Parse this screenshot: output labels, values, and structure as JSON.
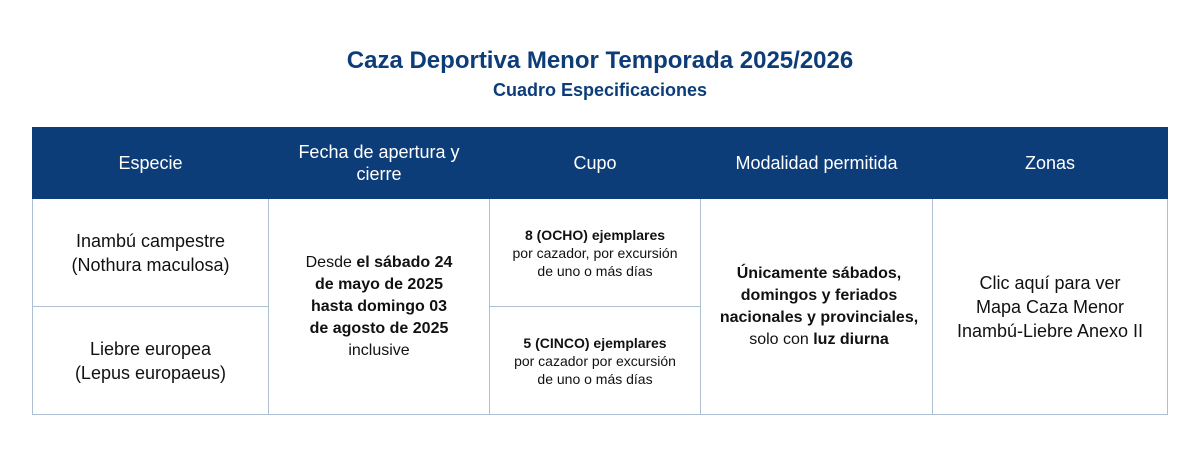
{
  "header": {
    "title": "Caza Deportiva Menor Temporada 2025/2026",
    "subtitle": "Cuadro Especificaciones"
  },
  "table": {
    "columns": [
      "Especie",
      "Fecha de apertura y cierre",
      "Cupo",
      "Modalidad permitida",
      "Zonas"
    ],
    "rows": [
      {
        "especie_name": "Inambú campestre",
        "especie_scientific": "(Nothura maculosa)",
        "cupo_bold": "8 (OCHO) ejemplares",
        "cupo_rest": "por cazador, por excursión de uno o más días"
      },
      {
        "especie_name": "Liebre europea",
        "especie_scientific": "(Lepus europaeus)",
        "cupo_bold": "5 (CINCO) ejemplares",
        "cupo_rest": "por cazador por excursión de uno o más días"
      }
    ],
    "fecha": {
      "prefix": "Desde ",
      "bold": "el sábado 24 de mayo de 2025 hasta domingo 03 de agosto de 2025",
      "suffix": " inclusive"
    },
    "modalidad": {
      "bold": "Únicamente sábados, domingos y feriados nacionales y provinciales,",
      "middle": " solo con ",
      "bold2": "luz diurna"
    },
    "zonas": {
      "link_text": "Clic aquí para ver Mapa Caza Menor Inambú-Liebre Anexo II"
    }
  },
  "colors": {
    "header_bg": "#0d3d78",
    "title_color": "#0d3d78",
    "border": "#aebfd3"
  }
}
